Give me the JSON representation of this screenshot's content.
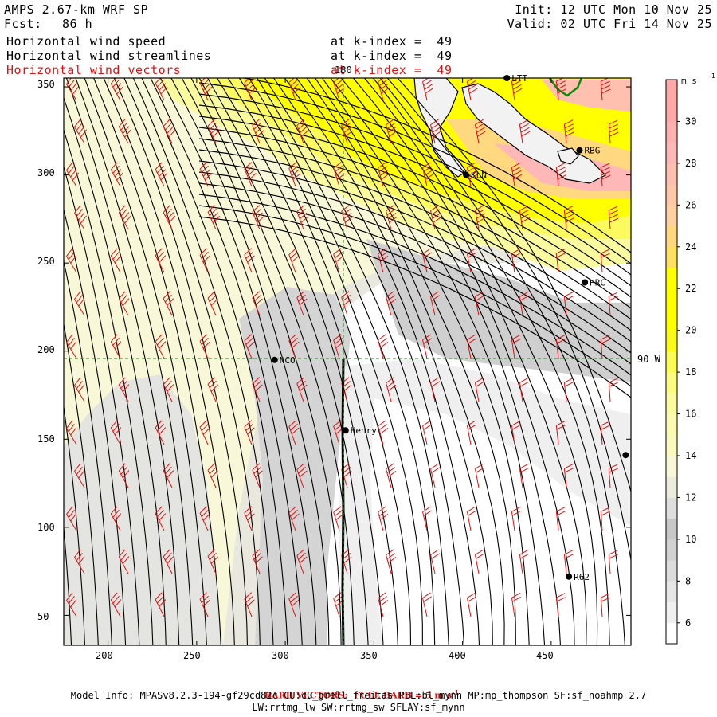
{
  "header": {
    "model": "AMPS 2.67-km WRF SP",
    "forecast_label": "Fcst:",
    "forecast_value": "86 h",
    "init": "Init: 12 UTC Mon 10 Nov 25",
    "valid": "Valid: 02 UTC Fri 14 Nov 25"
  },
  "fields": [
    {
      "name": "Horizontal wind speed",
      "level": "at k-index =  49",
      "color": "#000000"
    },
    {
      "name": "Horizontal wind streamlines",
      "level": "at k-index =  49",
      "color": "#000000"
    },
    {
      "name": "Horizontal wind vectors",
      "level": "at k-index =  49",
      "color": "#e01010"
    }
  ],
  "map": {
    "x_ticks": [
      200,
      250,
      300,
      350,
      400,
      450
    ],
    "y_ticks": [
      50,
      100,
      150,
      200,
      250,
      300,
      350
    ],
    "x_range": [
      175,
      495
    ],
    "y_range": [
      33,
      355
    ],
    "meridian_label": "180",
    "parallel_label": "90 W",
    "stations": [
      {
        "name": "LTT",
        "x": 425,
        "y": 355
      },
      {
        "name": "RBG",
        "x": 466,
        "y": 314
      },
      {
        "name": "KLN",
        "x": 402,
        "y": 300
      },
      {
        "name": "HRC",
        "x": 469,
        "y": 239
      },
      {
        "name": "NCO",
        "x": 294,
        "y": 195
      },
      {
        "name": "Henry",
        "x": 334,
        "y": 155
      },
      {
        "name": "R62",
        "x": 460,
        "y": 72
      },
      {
        "name": "",
        "x": 492,
        "y": 141
      }
    ]
  },
  "colorbar": {
    "unit": "m s",
    "unit_exp": "-1",
    "labels": [
      6,
      8,
      10,
      12,
      14,
      16,
      18,
      20,
      22,
      24,
      26,
      28,
      30
    ],
    "colors": {
      "5": "#ffffff",
      "6": "#f0f0f0",
      "7": "#e6e6e6",
      "8": "#dcdcdc",
      "9": "#d2d2d2",
      "10": "#c8c8c8",
      "11": "#dedede",
      "12": "#ececdc",
      "13": "#f8f8d8",
      "14": "#fafabc",
      "15": "#fafab0",
      "16": "#fafaa0",
      "17": "#fbfb80",
      "18": "#fbfb55",
      "19": "#fafa18",
      "20": "#ffff00",
      "21": "#ffff00",
      "22": "#ffff00",
      "23": "#ffe060",
      "24": "#ffd880",
      "25": "#ffd0a0",
      "26": "#ffc8a8",
      "27": "#ffc0b0",
      "28": "#ffb8b8",
      "29": "#ffb0b0",
      "30": "#ffa8a8",
      "31": "#ffa8a8"
    }
  },
  "footer": {
    "barb_note": "BARB VECTORS:  FULL BARB = 5 m s",
    "barb_exp": "-1",
    "model_info": "Model Info: MPASv8.2.3-194-gf29cd82c CU:cu_grell_freitas PBL:bl_mynn MP:mp_thompson SF:sf_noahmp 2.7",
    "schemes": "LW:rrtmg_lw SW:rrtmg_sw SFLAY:sf_mynn"
  }
}
